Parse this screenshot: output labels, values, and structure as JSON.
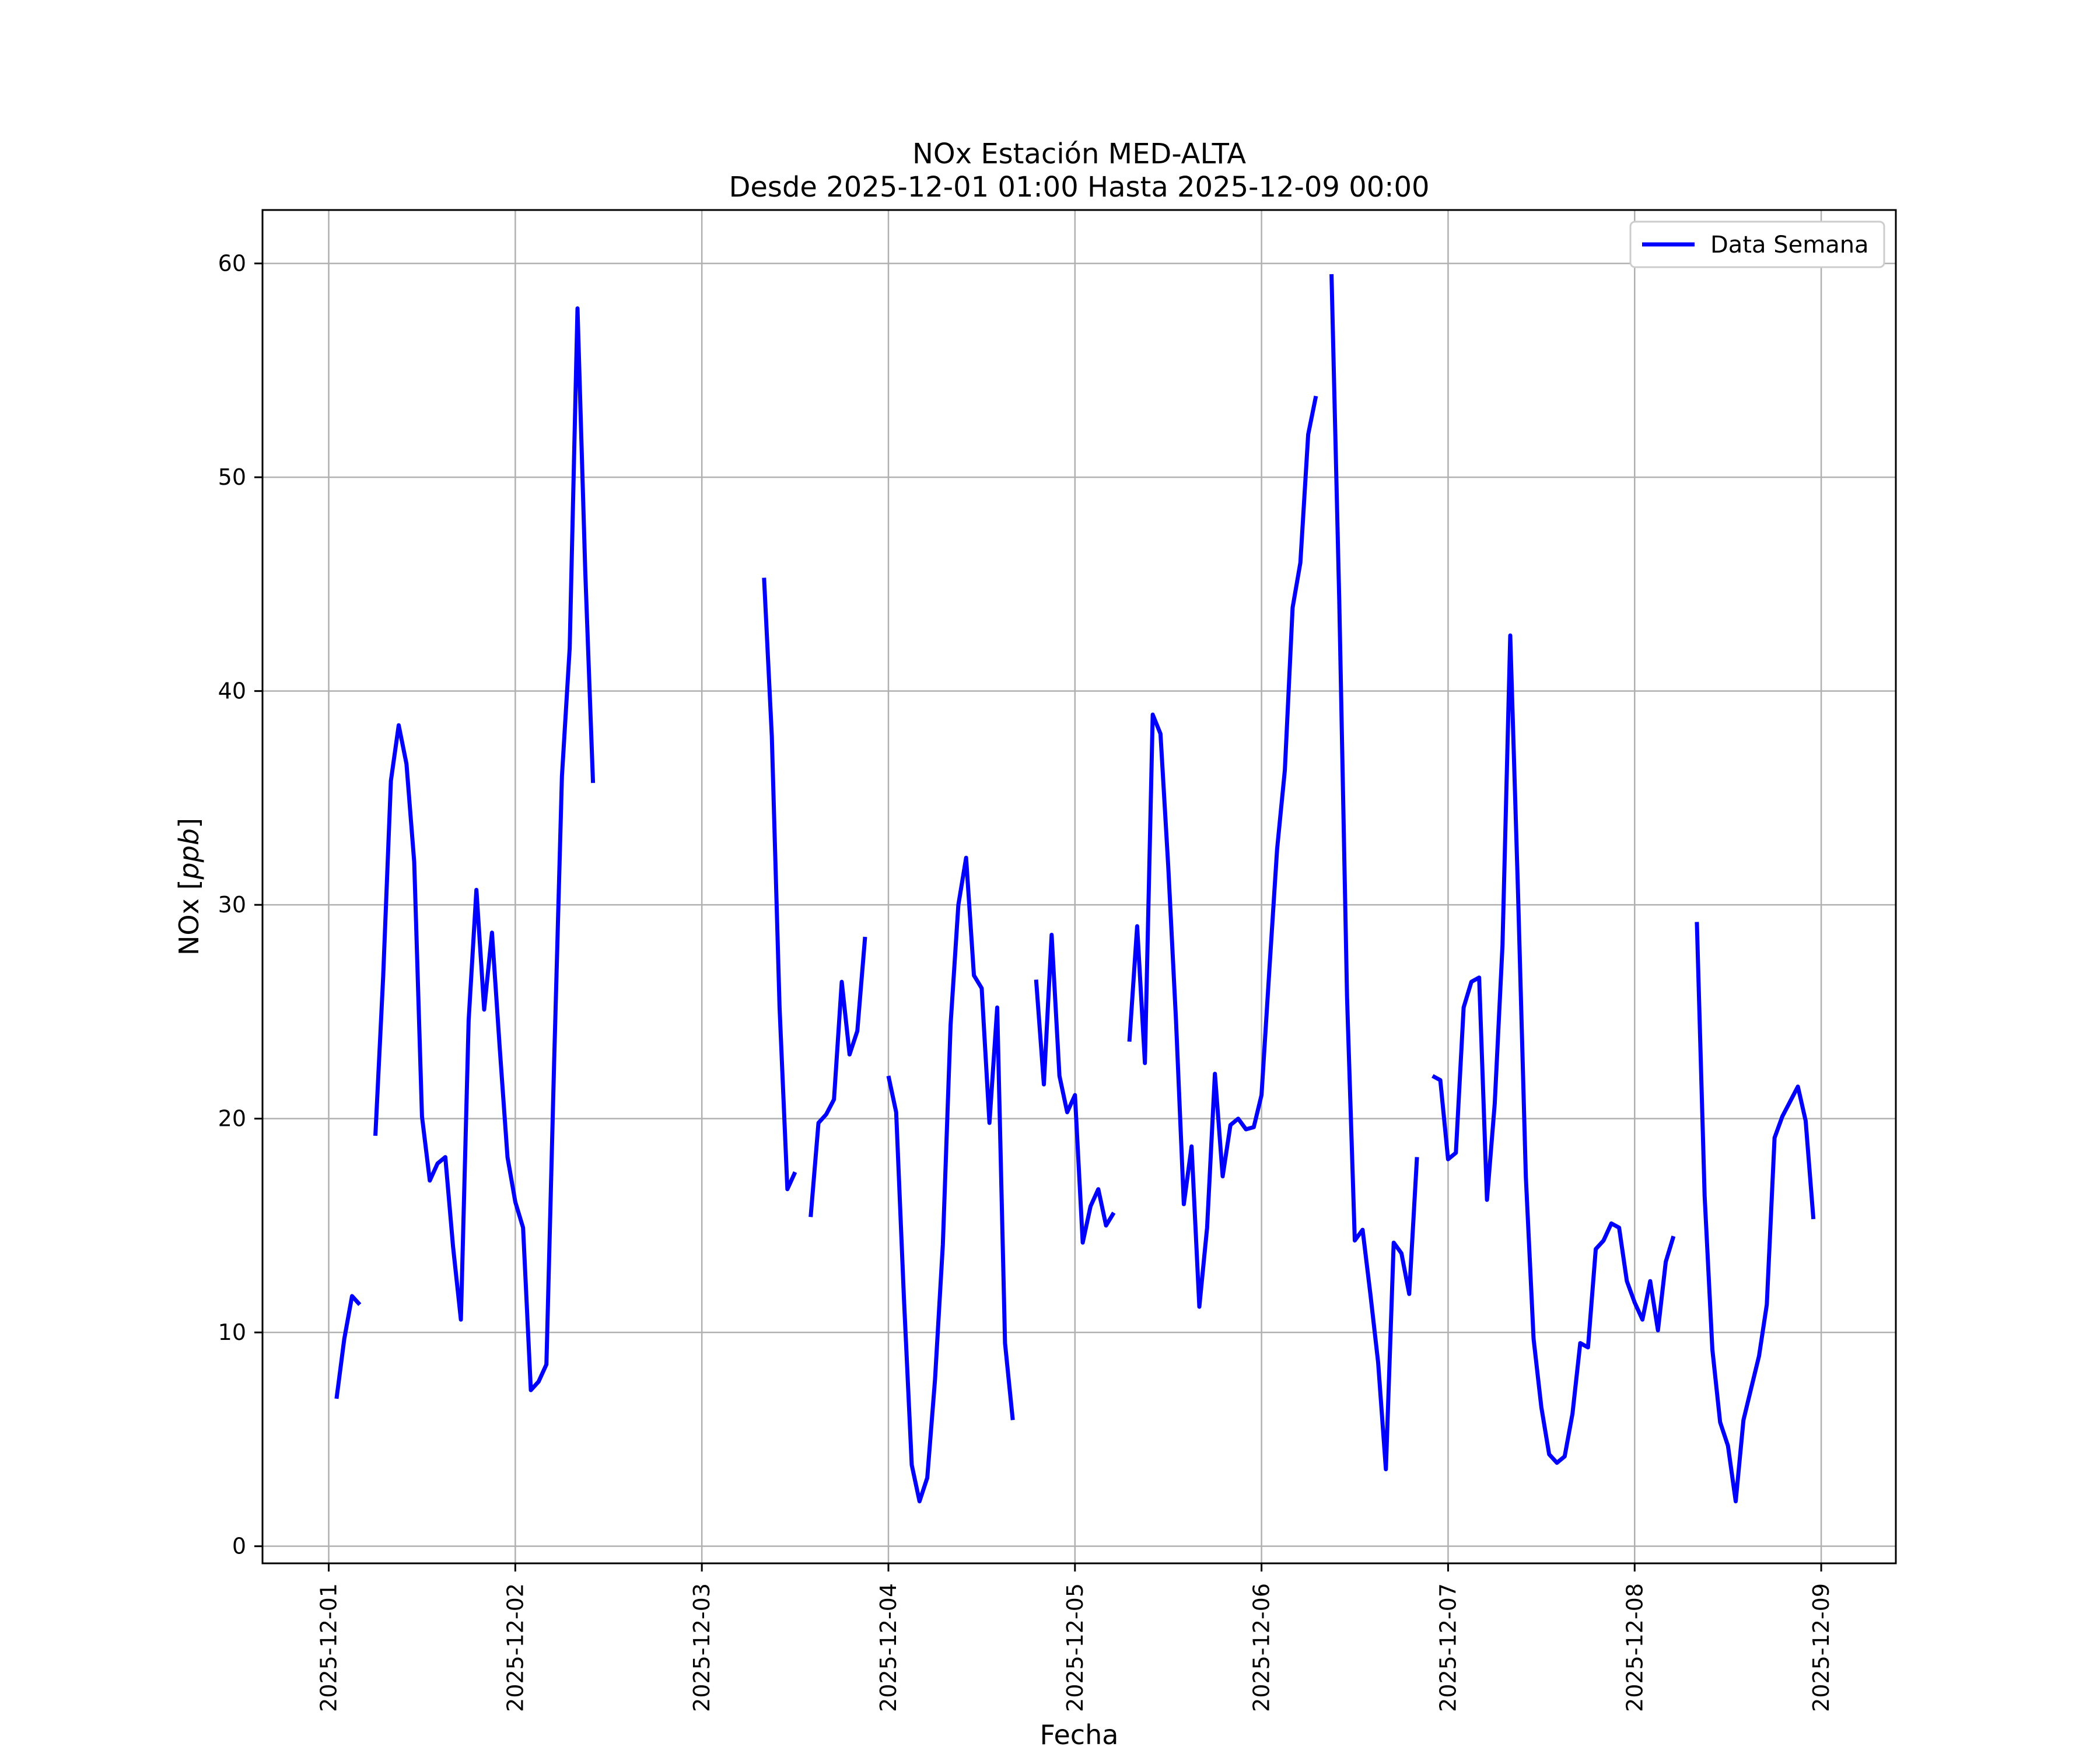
{
  "chart_data": {
    "type": "line",
    "title": "NOx Estación MED-ALTA",
    "subtitle": "Desde 2025-12-01 01:00 Hasta 2025-12-09 00:00",
    "xlabel": "Fecha",
    "ylabel_main": "NOx [",
    "ylabel_unit": "ppb",
    "ylabel_close": "]",
    "x_ticks": [
      "2025-12-01",
      "2025-12-02",
      "2025-12-03",
      "2025-12-04",
      "2025-12-05",
      "2025-12-06",
      "2025-12-07",
      "2025-12-08",
      "2025-12-09"
    ],
    "y_ticks": [
      "0",
      "10",
      "20",
      "30",
      "40",
      "50",
      "60"
    ],
    "x_range_days": [
      -0.355,
      8.4
    ],
    "ylim": [
      -0.8,
      62.5
    ],
    "grid": true,
    "legend_position": "top-right",
    "line_color": "#0000ff",
    "series": [
      {
        "name": "Data Semana",
        "segments": [
          [
            [
              1,
              6.9
            ],
            [
              2,
              9.7
            ],
            [
              3,
              11.7
            ],
            [
              4,
              11.3
            ]
          ],
          [
            [
              6,
              19.2
            ],
            [
              7,
              26.6
            ],
            [
              8,
              35.8
            ],
            [
              9,
              38.4
            ],
            [
              10,
              36.6
            ],
            [
              11,
              32.0
            ],
            [
              12,
              20.1
            ],
            [
              13,
              17.1
            ],
            [
              14,
              17.9
            ],
            [
              15,
              18.2
            ],
            [
              16,
              14.0
            ],
            [
              17,
              10.6
            ],
            [
              18,
              24.6
            ],
            [
              19,
              30.7
            ],
            [
              20,
              25.1
            ],
            [
              21,
              28.7
            ],
            [
              22,
              23.3
            ],
            [
              23,
              18.2
            ],
            [
              24,
              16.1
            ],
            [
              25,
              14.9
            ],
            [
              26,
              7.3
            ],
            [
              27,
              7.7
            ],
            [
              28,
              8.5
            ],
            [
              29,
              22.7
            ],
            [
              30,
              36.0
            ],
            [
              31,
              42.0
            ],
            [
              32,
              57.9
            ],
            [
              33,
              45.6
            ],
            [
              34,
              35.7
            ]
          ],
          [
            [
              56,
              45.3
            ],
            [
              57,
              37.9
            ],
            [
              58,
              25.2
            ],
            [
              59,
              16.7
            ],
            [
              60,
              17.5
            ]
          ],
          [
            [
              62,
              15.4
            ],
            [
              63,
              19.8
            ],
            [
              64,
              20.2
            ],
            [
              65,
              20.9
            ],
            [
              66,
              26.4
            ],
            [
              67,
              23.0
            ],
            [
              68,
              24.1
            ],
            [
              69,
              28.5
            ]
          ],
          [
            [
              72,
              22.0
            ],
            [
              73,
              20.3
            ],
            [
              74,
              11.6
            ],
            [
              75,
              3.8
            ],
            [
              76,
              2.1
            ],
            [
              77,
              3.2
            ],
            [
              78,
              7.8
            ],
            [
              79,
              14.1
            ],
            [
              80,
              24.4
            ],
            [
              81,
              30.0
            ],
            [
              82,
              32.2
            ],
            [
              83,
              26.7
            ],
            [
              84,
              26.1
            ],
            [
              85,
              19.8
            ],
            [
              86,
              25.2
            ],
            [
              87,
              9.5
            ],
            [
              88,
              5.9
            ]
          ],
          [
            [
              91,
              26.5
            ],
            [
              92,
              21.6
            ],
            [
              93,
              28.6
            ],
            [
              94,
              22.0
            ],
            [
              95,
              20.3
            ],
            [
              96,
              21.1
            ],
            [
              97,
              14.2
            ],
            [
              98,
              15.9
            ],
            [
              99,
              16.7
            ],
            [
              100,
              15.0
            ],
            [
              101,
              15.6
            ]
          ],
          [
            [
              103,
              23.6
            ],
            [
              104,
              29.0
            ],
            [
              105,
              22.6
            ],
            [
              106,
              38.9
            ],
            [
              107,
              38.0
            ],
            [
              108,
              31.8
            ],
            [
              109,
              24.6
            ],
            [
              110,
              16.0
            ],
            [
              111,
              18.7
            ],
            [
              112,
              11.2
            ],
            [
              113,
              14.9
            ],
            [
              114,
              22.1
            ],
            [
              115,
              17.3
            ],
            [
              116,
              19.7
            ],
            [
              117,
              20.0
            ],
            [
              118,
              19.5
            ],
            [
              119,
              19.6
            ],
            [
              120,
              21.1
            ],
            [
              121,
              26.9
            ],
            [
              122,
              32.6
            ],
            [
              123,
              36.3
            ],
            [
              124,
              43.9
            ],
            [
              125,
              46.0
            ],
            [
              126,
              52.0
            ],
            [
              127,
              53.8
            ]
          ],
          [
            [
              129,
              59.5
            ],
            [
              130,
              44.2
            ],
            [
              131,
              25.7
            ],
            [
              132,
              14.3
            ],
            [
              133,
              14.8
            ],
            [
              134,
              11.8
            ],
            [
              135,
              8.6
            ],
            [
              136,
              3.6
            ],
            [
              137,
              14.2
            ],
            [
              138,
              13.7
            ],
            [
              139,
              11.8
            ],
            [
              140,
              18.2
            ]
          ],
          [
            [
              142,
              22.0
            ],
            [
              143,
              21.8
            ],
            [
              144,
              18.1
            ],
            [
              145,
              18.4
            ],
            [
              146,
              25.2
            ],
            [
              147,
              26.4
            ],
            [
              148,
              26.6
            ],
            [
              149,
              16.2
            ],
            [
              150,
              20.7
            ],
            [
              151,
              28.1
            ],
            [
              152,
              42.6
            ],
            [
              153,
              30.5
            ],
            [
              154,
              17.3
            ],
            [
              155,
              9.7
            ],
            [
              156,
              6.5
            ],
            [
              157,
              4.3
            ],
            [
              158,
              3.9
            ],
            [
              159,
              4.2
            ],
            [
              160,
              6.2
            ],
            [
              161,
              9.5
            ],
            [
              162,
              9.3
            ],
            [
              163,
              13.9
            ],
            [
              164,
              14.3
            ],
            [
              165,
              15.1
            ],
            [
              166,
              14.9
            ],
            [
              167,
              12.4
            ],
            [
              168,
              11.4
            ],
            [
              169,
              10.6
            ],
            [
              170,
              12.4
            ],
            [
              171,
              10.1
            ],
            [
              172,
              13.3
            ],
            [
              173,
              14.5
            ]
          ],
          [
            [
              176,
              29.2
            ],
            [
              177,
              16.4
            ],
            [
              178,
              9.2
            ],
            [
              179,
              5.8
            ],
            [
              180,
              4.7
            ],
            [
              181,
              2.1
            ],
            [
              182,
              5.9
            ],
            [
              183,
              7.4
            ],
            [
              184,
              8.9
            ],
            [
              185,
              11.3
            ],
            [
              186,
              19.1
            ],
            [
              187,
              20.1
            ],
            [
              188,
              20.8
            ],
            [
              189,
              21.5
            ],
            [
              190,
              19.9
            ],
            [
              191,
              15.3
            ]
          ]
        ]
      }
    ]
  }
}
